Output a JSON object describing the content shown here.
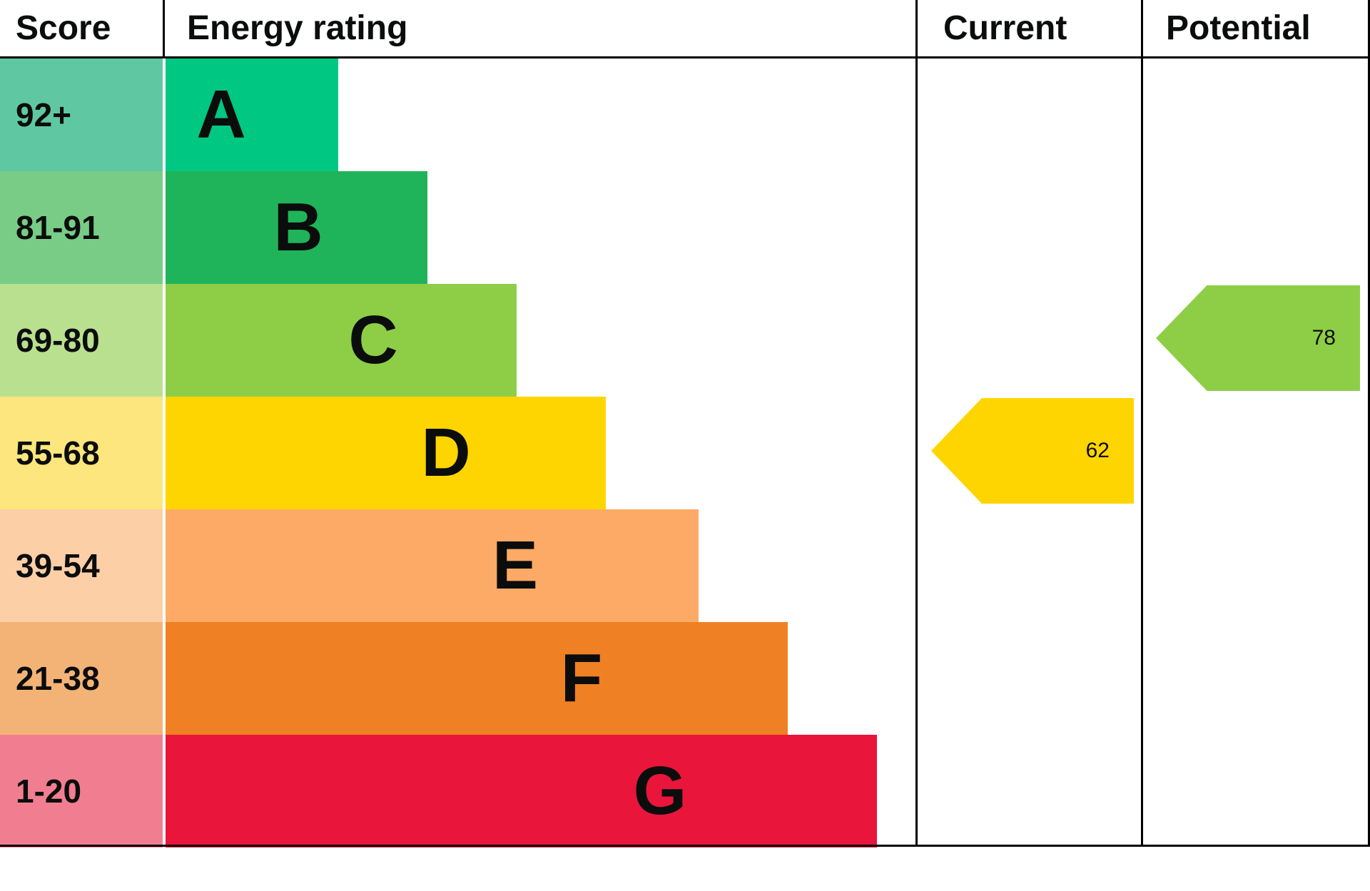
{
  "header": {
    "score": "Score",
    "energy_rating": "Energy rating",
    "current": "Current",
    "potential": "Potential"
  },
  "chart_data": {
    "type": "bar",
    "subtype": "epc-energy-rating-graph",
    "title": "",
    "columns": [
      "Score",
      "Energy rating",
      "Current",
      "Potential"
    ],
    "bands": [
      {
        "letter": "A",
        "score": "92+",
        "bar_color": "#00c781",
        "score_bg": "#5fc8a2"
      },
      {
        "letter": "B",
        "score": "81-91",
        "bar_color": "#1fb45a",
        "score_bg": "#78cc86"
      },
      {
        "letter": "C",
        "score": "69-80",
        "bar_color": "#8dce46",
        "score_bg": "#b9e08e"
      },
      {
        "letter": "D",
        "score": "55-68",
        "bar_color": "#ffd500",
        "score_bg": "#fce67d"
      },
      {
        "letter": "E",
        "score": "39-54",
        "bar_color": "#fcaa65",
        "score_bg": "#fccfa6"
      },
      {
        "letter": "F",
        "score": "21-38",
        "bar_color": "#ef8023",
        "score_bg": "#f4b376"
      },
      {
        "letter": "G",
        "score": "1-20",
        "bar_color": "#e9153b",
        "score_bg": "#f17e90"
      }
    ],
    "current": {
      "value": "62",
      "band": "D",
      "color": "#ffd500"
    },
    "potential": {
      "value": "78",
      "band": "C",
      "color": "#8dce46"
    }
  }
}
